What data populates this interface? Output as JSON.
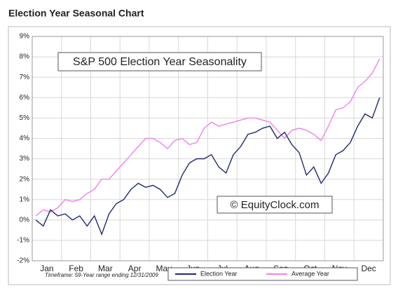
{
  "chart_data": {
    "type": "line",
    "title": "Election Year Seasonal Chart",
    "subtitle": "S&P 500 Election Year Seasonality",
    "annotations": [
      "© EquityClock.com",
      "Timeframe: 59-Year range ending 12/31/2009"
    ],
    "categories": [
      "Jan",
      null,
      null,
      null,
      "Feb",
      null,
      null,
      null,
      "Mar",
      null,
      null,
      null,
      "Apr",
      null,
      null,
      null,
      "May",
      null,
      null,
      null,
      "Jun",
      null,
      null,
      null,
      "Jul",
      null,
      null,
      null,
      "Aug",
      null,
      null,
      null,
      "Sep",
      null,
      null,
      null,
      "Oct",
      null,
      null,
      null,
      "Nov",
      null,
      null,
      null,
      "Dec",
      null,
      null,
      null
    ],
    "series": [
      {
        "name": "Election Year",
        "color": "#1f2a6e",
        "values": [
          0,
          -0.3,
          0.5,
          0.2,
          0.3,
          0.0,
          0.2,
          -0.3,
          0.2,
          -0.7,
          0.3,
          0.8,
          1.0,
          1.5,
          1.8,
          1.6,
          1.7,
          1.5,
          1.1,
          1.3,
          2.2,
          2.8,
          3.0,
          3.0,
          3.2,
          2.6,
          2.3,
          3.2,
          3.6,
          4.2,
          4.3,
          4.5,
          4.6,
          4.0,
          4.3,
          3.7,
          3.3,
          2.2,
          2.6,
          1.8,
          2.3,
          3.2,
          3.4,
          3.8,
          4.6,
          5.2,
          5.0,
          6.0
        ]
      },
      {
        "name": "Average Year",
        "color": "#ee82ee",
        "values": [
          0.2,
          0.5,
          0.4,
          0.6,
          1.0,
          0.9,
          1.0,
          1.3,
          1.5,
          2.0,
          2.0,
          2.4,
          2.8,
          3.2,
          3.6,
          4.0,
          4.0,
          3.8,
          3.5,
          3.9,
          4.0,
          3.7,
          3.8,
          4.5,
          4.8,
          4.6,
          4.7,
          4.8,
          4.9,
          5.0,
          5.0,
          4.9,
          4.8,
          4.4,
          4.0,
          4.4,
          4.5,
          4.4,
          4.2,
          3.9,
          4.6,
          5.4,
          5.5,
          5.8,
          6.5,
          6.8,
          7.2,
          7.9
        ]
      }
    ],
    "ylim": [
      -2,
      9
    ],
    "yticks": [
      {
        "value": -2,
        "label": "-2%"
      },
      {
        "value": -1,
        "label": "-1%"
      },
      {
        "value": 0,
        "label": "0%"
      },
      {
        "value": 1,
        "label": "1%"
      },
      {
        "value": 2,
        "label": "2%"
      },
      {
        "value": 3,
        "label": "3%"
      },
      {
        "value": 4,
        "label": "4%"
      },
      {
        "value": 5,
        "label": "5%"
      },
      {
        "value": 6,
        "label": "6%"
      },
      {
        "value": 7,
        "label": "7%"
      },
      {
        "value": 8,
        "label": "8%"
      },
      {
        "value": 9,
        "label": "9%"
      }
    ],
    "grid": true
  }
}
